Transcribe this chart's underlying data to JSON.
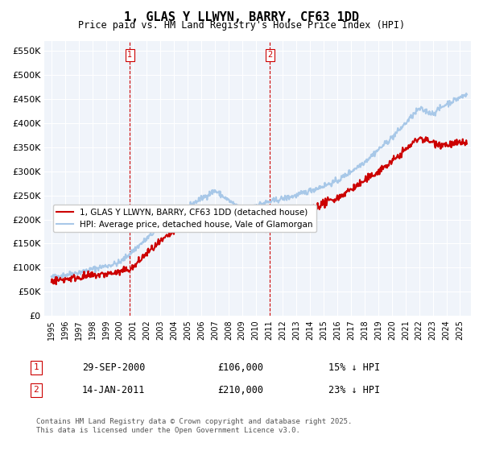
{
  "title": "1, GLAS Y LLWYN, BARRY, CF63 1DD",
  "subtitle": "Price paid vs. HM Land Registry's House Price Index (HPI)",
  "ylim": [
    0,
    570000
  ],
  "yticks": [
    0,
    50000,
    100000,
    150000,
    200000,
    250000,
    300000,
    350000,
    400000,
    450000,
    500000,
    550000
  ],
  "ytick_labels": [
    "£0",
    "£50K",
    "£100K",
    "£150K",
    "£200K",
    "£250K",
    "£300K",
    "£350K",
    "£400K",
    "£450K",
    "£500K",
    "£550K"
  ],
  "hpi_color": "#a8c8e8",
  "price_color": "#cc0000",
  "marker1_date": 2000.75,
  "marker1_price": 106000,
  "marker2_date": 2011.04,
  "marker2_price": 210000,
  "legend1": "1, GLAS Y LLWYN, BARRY, CF63 1DD (detached house)",
  "legend2": "HPI: Average price, detached house, Vale of Glamorgan",
  "note1_num": "1",
  "note1_date": "29-SEP-2000",
  "note1_price": "£106,000",
  "note1_hpi": "15% ↓ HPI",
  "note2_num": "2",
  "note2_date": "14-JAN-2011",
  "note2_price": "£210,000",
  "note2_hpi": "23% ↓ HPI",
  "footer": "Contains HM Land Registry data © Crown copyright and database right 2025.\nThis data is licensed under the Open Government Licence v3.0.",
  "background_color": "#f0f4fa"
}
